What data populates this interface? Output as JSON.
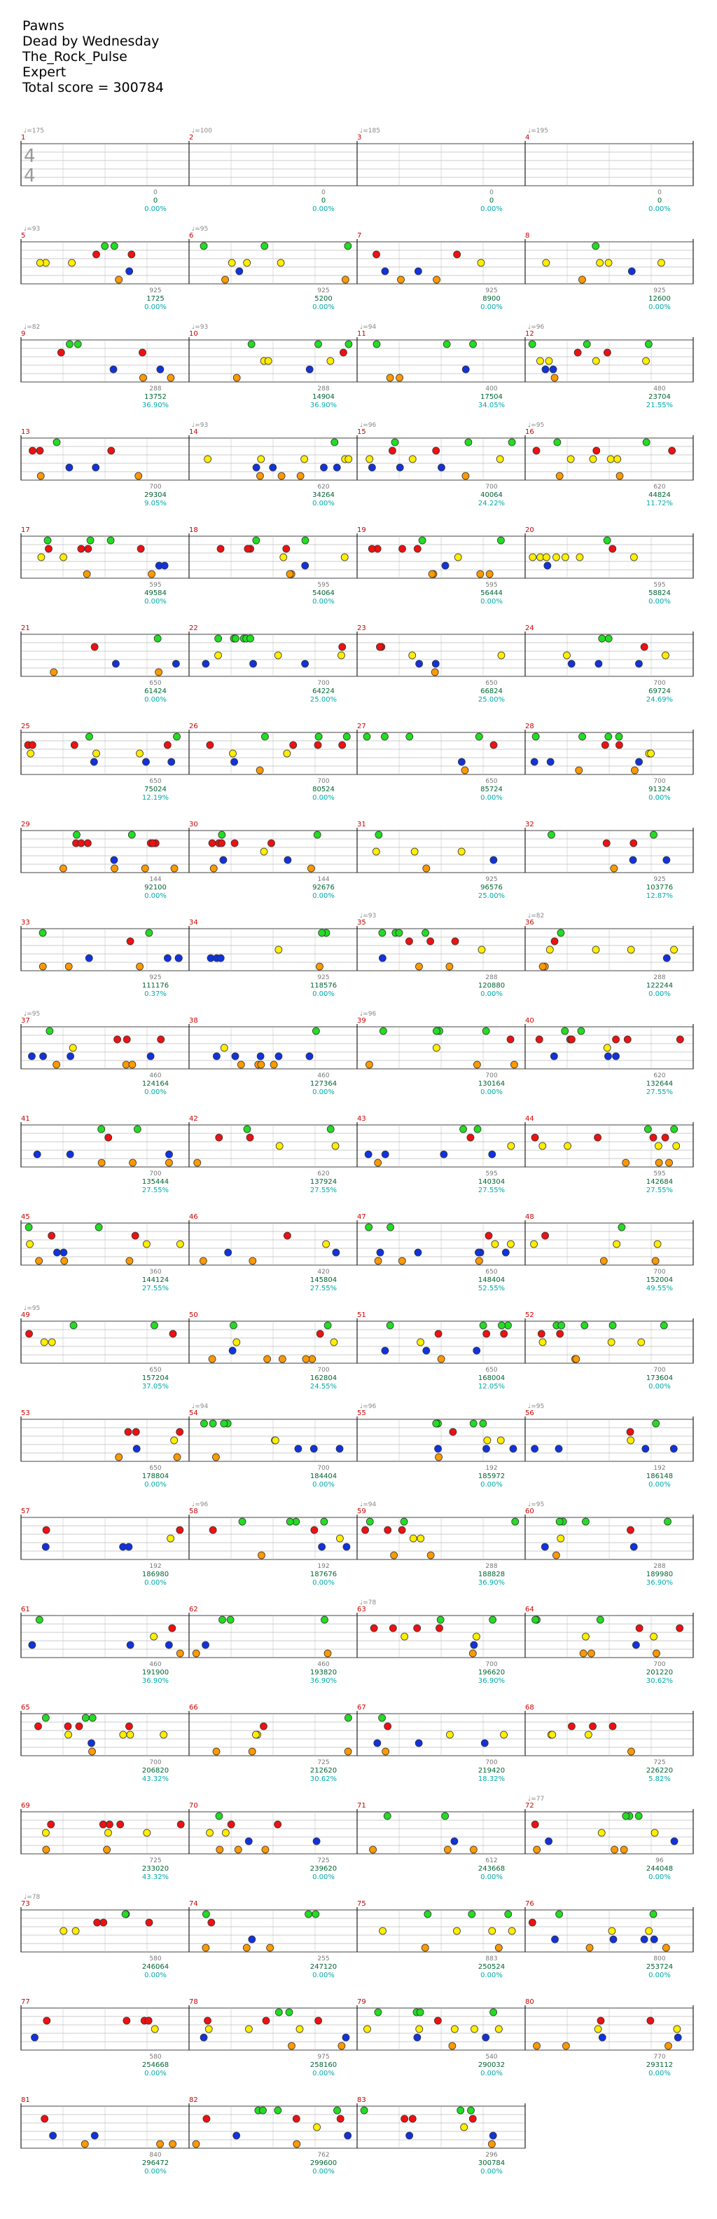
{
  "song": {
    "title": "Pawns",
    "artist": "Dead by Wednesday",
    "charter": "The_Rock_Pulse",
    "difficulty": "Expert",
    "total_score_label": "Total score = 300784"
  },
  "time_signature": {
    "numerator": "4",
    "denominator": "4"
  },
  "colors": {
    "green": "#22dd22",
    "red": "#ee1111",
    "yellow": "#ffee00",
    "blue": "#1133dd",
    "orange": "#ff9900",
    "purple": "#aa22aa",
    "sp_phrase_fill": "#3333dd",
    "overdrive_fill": "#33dd33",
    "solo_fill": "#bbc8dd",
    "score_color": "#006633",
    "percent_color": "#00aaaa",
    "measure_number_color": "#cc0000",
    "tempo_color": "#888888"
  },
  "rows": [
    {
      "measures": [
        {
          "num": "1",
          "tempo": "♩=175",
          "notes": "0",
          "score": "0",
          "pct": "0.00%"
        },
        {
          "num": "2",
          "tempo": "♩=100",
          "notes": "0",
          "score": "0",
          "pct": "0.00%"
        },
        {
          "num": "3",
          "tempo": "♩=185",
          "notes": "0",
          "score": "0",
          "pct": "0.00%"
        },
        {
          "num": "4",
          "tempo": "♩=195",
          "notes": "0",
          "score": "0",
          "pct": "0.00%"
        }
      ]
    },
    {
      "measures": [
        {
          "num": "5",
          "tempo": "♩=93",
          "notes": "925",
          "score": "1725",
          "pct": "0.00%"
        },
        {
          "num": "6",
          "tempo": "♩=95",
          "notes": "925",
          "score": "5200",
          "pct": "0.00%"
        },
        {
          "num": "7",
          "tempo": "",
          "notes": "925",
          "score": "8900",
          "pct": "0.00%"
        },
        {
          "num": "8",
          "tempo": "",
          "notes": "925",
          "score": "12600",
          "pct": "0.00%"
        }
      ]
    },
    {
      "measures": [
        {
          "num": "9",
          "tempo": "♩=82",
          "notes": "288",
          "score": "13752",
          "pct": "36.90%"
        },
        {
          "num": "10",
          "tempo": "♩=93",
          "notes": "288",
          "score": "14904",
          "pct": "36.90%"
        },
        {
          "num": "11",
          "tempo": "♩=94",
          "notes": "400",
          "score": "17504",
          "pct": "34.05%"
        },
        {
          "num": "12",
          "tempo": "♩=96",
          "notes": "480",
          "score": "23704",
          "pct": "21.55%"
        }
      ]
    },
    {
      "measures": [
        {
          "num": "13",
          "tempo": "",
          "notes": "700",
          "score": "29304",
          "pct": "9.05%"
        },
        {
          "num": "14",
          "tempo": "♩=93",
          "notes": "620",
          "score": "34264",
          "pct": "0.00%"
        },
        {
          "num": "15",
          "tempo": "♩=96",
          "notes": "700",
          "score": "40064",
          "pct": "24.22%"
        },
        {
          "num": "16",
          "tempo": "♩=95",
          "notes": "620",
          "score": "44824",
          "pct": "11.72%"
        }
      ]
    },
    {
      "measures": [
        {
          "num": "17",
          "tempo": "",
          "notes": "595",
          "score": "49584",
          "pct": "0.00%"
        },
        {
          "num": "18",
          "tempo": "",
          "notes": "595",
          "score": "54064",
          "pct": "0.00%"
        },
        {
          "num": "19",
          "tempo": "",
          "notes": "595",
          "score": "56444",
          "pct": "0.00%"
        },
        {
          "num": "20",
          "tempo": "",
          "notes": "595",
          "score": "58824",
          "pct": "0.00%"
        }
      ]
    },
    {
      "measures": [
        {
          "num": "21",
          "tempo": "",
          "notes": "650",
          "score": "61424",
          "pct": "0.00%"
        },
        {
          "num": "22",
          "tempo": "",
          "notes": "700",
          "score": "64224",
          "pct": "25.00%"
        },
        {
          "num": "23",
          "tempo": "",
          "notes": "650",
          "score": "66824",
          "pct": "25.00%"
        },
        {
          "num": "24",
          "tempo": "",
          "notes": "700",
          "score": "69724",
          "pct": "24.69%"
        }
      ]
    },
    {
      "measures": [
        {
          "num": "25",
          "tempo": "",
          "notes": "650",
          "score": "75024",
          "pct": "12.19%"
        },
        {
          "num": "26",
          "tempo": "",
          "notes": "700",
          "score": "80524",
          "pct": "0.00%"
        },
        {
          "num": "27",
          "tempo": "",
          "notes": "650",
          "score": "85724",
          "pct": "0.00%"
        },
        {
          "num": "28",
          "tempo": "",
          "notes": "700",
          "score": "91324",
          "pct": "0.00%"
        }
      ]
    },
    {
      "measures": [
        {
          "num": "29",
          "tempo": "",
          "notes": "144",
          "score": "92100",
          "pct": "0.00%"
        },
        {
          "num": "30",
          "tempo": "",
          "notes": "144",
          "score": "92676",
          "pct": "0.00%"
        },
        {
          "num": "31",
          "tempo": "",
          "notes": "925",
          "score": "96576",
          "pct": "25.00%"
        },
        {
          "num": "32",
          "tempo": "",
          "notes": "925",
          "score": "103776",
          "pct": "12.87%"
        }
      ]
    },
    {
      "measures": [
        {
          "num": "33",
          "tempo": "",
          "notes": "925",
          "score": "111176",
          "pct": "0.37%"
        },
        {
          "num": "34",
          "tempo": "",
          "notes": "925",
          "score": "118576",
          "pct": "0.00%"
        },
        {
          "num": "35",
          "tempo": "♩=93",
          "notes": "288",
          "score": "120880",
          "pct": "0.00%"
        },
        {
          "num": "36",
          "tempo": "♩=82",
          "notes": "288",
          "score": "122244",
          "pct": "0.00%"
        }
      ]
    },
    {
      "measures": [
        {
          "num": "37",
          "tempo": "♩=95",
          "notes": "460",
          "score": "124164",
          "pct": "0.00%"
        },
        {
          "num": "38",
          "tempo": "",
          "notes": "460",
          "score": "127364",
          "pct": "0.00%"
        },
        {
          "num": "39",
          "tempo": "♩=96",
          "notes": "700",
          "score": "130164",
          "pct": "0.00%"
        },
        {
          "num": "40",
          "tempo": "",
          "notes": "620",
          "score": "132644",
          "pct": "27.55%"
        }
      ]
    },
    {
      "measures": [
        {
          "num": "41",
          "tempo": "",
          "notes": "700",
          "score": "135444",
          "pct": "27.55%"
        },
        {
          "num": "42",
          "tempo": "",
          "notes": "620",
          "score": "137924",
          "pct": "27.55%"
        },
        {
          "num": "43",
          "tempo": "",
          "notes": "595",
          "score": "140304",
          "pct": "27.55%"
        },
        {
          "num": "44",
          "tempo": "",
          "notes": "595",
          "score": "142684",
          "pct": "27.55%"
        }
      ]
    },
    {
      "measures": [
        {
          "num": "45",
          "tempo": "",
          "notes": "360",
          "score": "144124",
          "pct": "27.55%"
        },
        {
          "num": "46",
          "tempo": "",
          "notes": "420",
          "score": "145804",
          "pct": "27.55%"
        },
        {
          "num": "47",
          "tempo": "",
          "notes": "650",
          "score": "148404",
          "pct": "52.55%"
        },
        {
          "num": "48",
          "tempo": "",
          "notes": "700",
          "score": "152004",
          "pct": "49.55%"
        }
      ]
    },
    {
      "measures": [
        {
          "num": "49",
          "tempo": "♩=95",
          "notes": "650",
          "score": "157204",
          "pct": "37.05%"
        },
        {
          "num": "50",
          "tempo": "",
          "notes": "700",
          "score": "162804",
          "pct": "24.55%"
        },
        {
          "num": "51",
          "tempo": "",
          "notes": "650",
          "score": "168004",
          "pct": "12.05%"
        },
        {
          "num": "52",
          "tempo": "",
          "notes": "700",
          "score": "173604",
          "pct": "0.00%"
        }
      ]
    },
    {
      "measures": [
        {
          "num": "53",
          "tempo": "",
          "notes": "650",
          "score": "178804",
          "pct": "0.00%"
        },
        {
          "num": "54",
          "tempo": "♩=94",
          "notes": "700",
          "score": "184404",
          "pct": "0.00%"
        },
        {
          "num": "55",
          "tempo": "♩=96",
          "notes": "192",
          "score": "185972",
          "pct": "0.00%"
        },
        {
          "num": "56",
          "tempo": "♩=95",
          "notes": "192",
          "score": "186148",
          "pct": "0.00%"
        }
      ]
    },
    {
      "measures": [
        {
          "num": "57",
          "tempo": "",
          "notes": "192",
          "score": "186980",
          "pct": "0.00%"
        },
        {
          "num": "58",
          "tempo": "♩=96",
          "notes": "192",
          "score": "187676",
          "pct": "0.00%"
        },
        {
          "num": "59",
          "tempo": "♩=94",
          "notes": "288",
          "score": "188828",
          "pct": "36.90%"
        },
        {
          "num": "60",
          "tempo": "♩=95",
          "notes": "288",
          "score": "189980",
          "pct": "36.90%"
        }
      ]
    },
    {
      "measures": [
        {
          "num": "61",
          "tempo": "",
          "notes": "460",
          "score": "191900",
          "pct": "36.90%"
        },
        {
          "num": "62",
          "tempo": "",
          "notes": "460",
          "score": "193820",
          "pct": "36.90%"
        },
        {
          "num": "63",
          "tempo": "♩=78",
          "notes": "700",
          "score": "196620",
          "pct": "36.90%"
        },
        {
          "num": "64",
          "tempo": "",
          "notes": "700",
          "score": "201220",
          "pct": "30.62%"
        }
      ]
    },
    {
      "measures": [
        {
          "num": "65",
          "tempo": "",
          "notes": "700",
          "score": "206820",
          "pct": "43.32%"
        },
        {
          "num": "66",
          "tempo": "",
          "notes": "725",
          "score": "212620",
          "pct": "30.62%"
        },
        {
          "num": "67",
          "tempo": "",
          "notes": "700",
          "score": "219420",
          "pct": "18.32%"
        },
        {
          "num": "68",
          "tempo": "",
          "notes": "725",
          "score": "226220",
          "pct": "5.82%"
        }
      ]
    },
    {
      "measures": [
        {
          "num": "69",
          "tempo": "",
          "notes": "725",
          "score": "233020",
          "pct": "43.32%"
        },
        {
          "num": "70",
          "tempo": "",
          "notes": "725",
          "score": "239620",
          "pct": "0.00%"
        },
        {
          "num": "71",
          "tempo": "",
          "notes": "612",
          "score": "243668",
          "pct": "0.00%"
        },
        {
          "num": "72",
          "tempo": "♩=77",
          "notes": "96",
          "score": "244048",
          "pct": "0.00%"
        }
      ]
    },
    {
      "measures": [
        {
          "num": "73",
          "tempo": "♩=78",
          "notes": "580",
          "score": "246064",
          "pct": "0.00%"
        },
        {
          "num": "74",
          "tempo": "",
          "notes": "255",
          "score": "247120",
          "pct": "0.00%"
        },
        {
          "num": "75",
          "tempo": "",
          "notes": "883",
          "score": "250524",
          "pct": "0.00%"
        },
        {
          "num": "76",
          "tempo": "",
          "notes": "800",
          "score": "253724",
          "pct": "0.00%"
        }
      ]
    },
    {
      "measures": [
        {
          "num": "77",
          "tempo": "",
          "notes": "580",
          "score": "254668",
          "pct": "0.00%"
        },
        {
          "num": "78",
          "tempo": "",
          "notes": "975",
          "score": "258160",
          "pct": "0.00%"
        },
        {
          "num": "79",
          "tempo": "",
          "notes": "540",
          "score": "290032",
          "pct": "0.00%"
        },
        {
          "num": "80",
          "tempo": "",
          "notes": "770",
          "score": "293112",
          "pct": "0.00%"
        }
      ]
    },
    {
      "measures": [
        {
          "num": "81",
          "tempo": "",
          "notes": "840",
          "score": "296472",
          "pct": "0.00%"
        },
        {
          "num": "82",
          "tempo": "",
          "notes": "762",
          "score": "299600",
          "pct": "0.00%"
        },
        {
          "num": "83",
          "tempo": "",
          "notes": "296",
          "score": "300784",
          "pct": "0.00%"
        }
      ]
    }
  ]
}
